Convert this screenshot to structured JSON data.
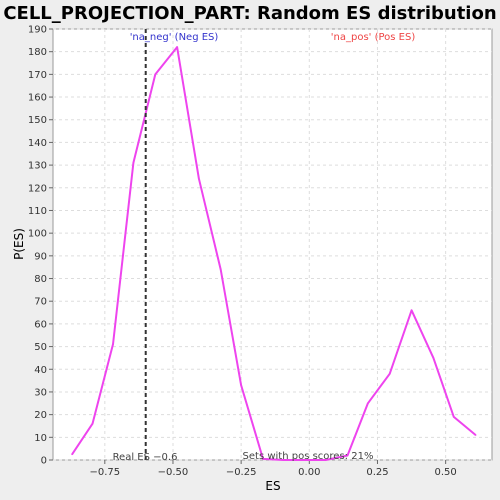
{
  "chart_data": {
    "type": "line",
    "title": "CELL_PROJECTION_PART: Random ES distribution",
    "xlabel": "ES",
    "ylabel": "P(ES)",
    "xlim": [
      -0.94,
      0.67
    ],
    "ylim": [
      0,
      190
    ],
    "xticks": [
      -0.75,
      -0.5,
      -0.25,
      0.0,
      0.25,
      0.5
    ],
    "xtick_labels": [
      "−0.75",
      "−0.50",
      "−0.25",
      "0.00",
      "0.25",
      "0.50"
    ],
    "yticks": [
      0,
      10,
      20,
      30,
      40,
      50,
      60,
      70,
      80,
      90,
      100,
      110,
      120,
      130,
      140,
      150,
      160,
      170,
      180,
      190
    ],
    "grid": true,
    "series": [
      {
        "color": "#ee44ee",
        "x": [
          -0.87,
          -0.795,
          -0.72,
          -0.645,
          -0.565,
          -0.485,
          -0.405,
          -0.325,
          -0.25,
          -0.17,
          -0.095,
          -0.015,
          0.06,
          0.14,
          0.215,
          0.295,
          0.375,
          0.455,
          0.53,
          0.61
        ],
        "y": [
          2.5,
          16,
          51,
          131,
          170,
          182,
          124,
          84,
          33,
          0.5,
          0,
          0,
          0,
          2,
          25,
          38,
          66,
          45,
          19,
          11
        ]
      }
    ],
    "real_es": -0.6,
    "annotations": {
      "neg": "'na_neg' (Neg ES)",
      "pos": "'na_pos' (Pos ES)",
      "real": "Real ES −0.6",
      "pos_scores": "Sets with pos scores: 21%"
    },
    "colors": {
      "neg": "#3333cc",
      "pos": "#ee4444",
      "line": "#ee44ee",
      "grid": "#dddddd",
      "plot_bg": "#ffffff",
      "page_bg": "#eeeeee"
    }
  }
}
